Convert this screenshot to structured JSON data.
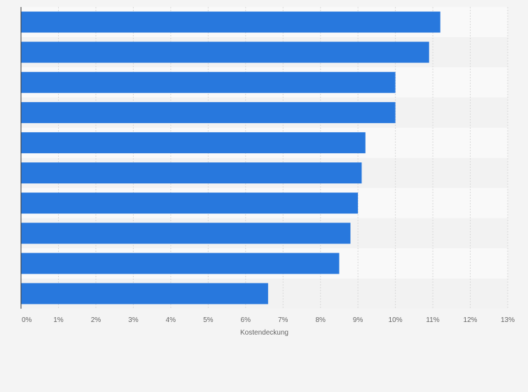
{
  "chart_data": {
    "type": "bar",
    "orientation": "horizontal",
    "title": "",
    "categories": [
      "",
      "",
      "",
      "",
      "",
      "",
      "",
      "",
      "",
      ""
    ],
    "values": [
      11.2,
      10.9,
      10.0,
      10.0,
      9.2,
      9.1,
      9.0,
      8.8,
      8.5,
      6.6
    ],
    "xlabel": "Kostendeckung",
    "ylabel": "",
    "xlim": [
      0,
      13
    ],
    "xticks": [
      "0%",
      "1%",
      "2%",
      "3%",
      "4%",
      "5%",
      "6%",
      "7%",
      "8%",
      "9%",
      "10%",
      "11%",
      "12%",
      "13%"
    ],
    "grid": true,
    "legend": "none",
    "colors": {
      "bar": "#2878dd",
      "band_light": "#f9f9f9",
      "band_dark": "#f2f2f2",
      "grid": "#d9d9d9",
      "axis": "#333333",
      "background": "#f4f4f4"
    }
  }
}
